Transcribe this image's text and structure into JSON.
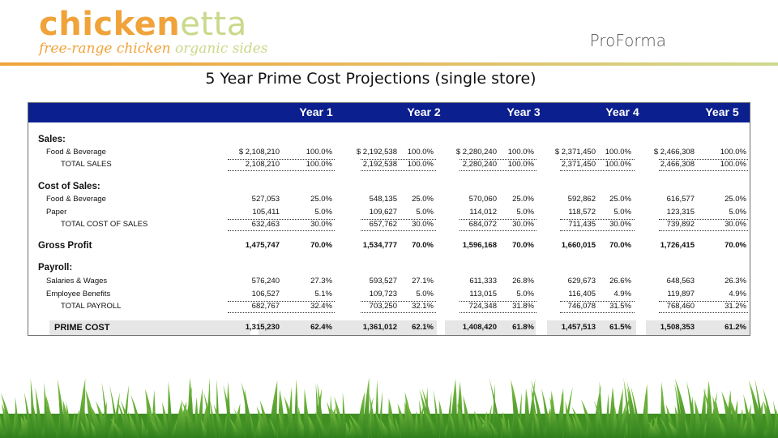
{
  "logo": {
    "brand_a": "chicken",
    "brand_b": "etta",
    "tagline_a": "free-range chicken",
    "tagline_b": "organic sides"
  },
  "header": {
    "label": "ProForma"
  },
  "page_title": "5 Year Prime Cost Projections (single store)",
  "years": [
    "Year 1",
    "Year 2",
    "Year 3",
    "Year 4",
    "Year 5"
  ],
  "sections": {
    "sales": "Sales:",
    "cost_of_sales": "Cost of Sales:",
    "gross_profit": "Gross Profit",
    "payroll": "Payroll:",
    "prime_cost": "PRIME COST"
  },
  "rows": {
    "sales_fb": {
      "label": "Food & Beverage",
      "values": [
        [
          "$ 2,108,210",
          "100.0%"
        ],
        [
          "$ 2,192,538",
          "100.0%"
        ],
        [
          "$ 2,280,240",
          "100.0%"
        ],
        [
          "$ 2,371,450",
          "100.0%"
        ],
        [
          "$ 2,466,308",
          "100.0%"
        ]
      ]
    },
    "total_sales": {
      "label": "TOTAL SALES",
      "values": [
        [
          "2,108,210",
          "100.0%"
        ],
        [
          "2,192,538",
          "100.0%"
        ],
        [
          "2,280,240",
          "100.0%"
        ],
        [
          "2,371,450",
          "100.0%"
        ],
        [
          "2,466,308",
          "100.0%"
        ]
      ]
    },
    "cos_fb": {
      "label": "Food & Beverage",
      "values": [
        [
          "527,053",
          "25.0%"
        ],
        [
          "548,135",
          "25.0%"
        ],
        [
          "570,060",
          "25.0%"
        ],
        [
          "592,862",
          "25.0%"
        ],
        [
          "616,577",
          "25.0%"
        ]
      ]
    },
    "paper": {
      "label": "Paper",
      "values": [
        [
          "105,411",
          "5.0%"
        ],
        [
          "109,627",
          "5.0%"
        ],
        [
          "114,012",
          "5.0%"
        ],
        [
          "118,572",
          "5.0%"
        ],
        [
          "123,315",
          "5.0%"
        ]
      ]
    },
    "total_cos": {
      "label": "TOTAL COST OF SALES",
      "values": [
        [
          "632,463",
          "30.0%"
        ],
        [
          "657,762",
          "30.0%"
        ],
        [
          "684,072",
          "30.0%"
        ],
        [
          "711,435",
          "30.0%"
        ],
        [
          "739,892",
          "30.0%"
        ]
      ]
    },
    "gross_profit": {
      "values": [
        [
          "1,475,747",
          "70.0%"
        ],
        [
          "1,534,777",
          "70.0%"
        ],
        [
          "1,596,168",
          "70.0%"
        ],
        [
          "1,660,015",
          "70.0%"
        ],
        [
          "1,726,415",
          "70.0%"
        ]
      ]
    },
    "salaries": {
      "label": "Salaries & Wages",
      "values": [
        [
          "576,240",
          "27.3%"
        ],
        [
          "593,527",
          "27.1%"
        ],
        [
          "611,333",
          "26.8%"
        ],
        [
          "629,673",
          "26.6%"
        ],
        [
          "648,563",
          "26.3%"
        ]
      ]
    },
    "benefits": {
      "label": "Employee Benefits",
      "values": [
        [
          "106,527",
          "5.1%"
        ],
        [
          "109,723",
          "5.0%"
        ],
        [
          "113,015",
          "5.0%"
        ],
        [
          "116,405",
          "4.9%"
        ],
        [
          "119,897",
          "4.9%"
        ]
      ]
    },
    "total_payroll": {
      "label": "TOTAL PAYROLL",
      "values": [
        [
          "682,767",
          "32.4%"
        ],
        [
          "703,250",
          "32.1%"
        ],
        [
          "724,348",
          "31.8%"
        ],
        [
          "746,078",
          "31.5%"
        ],
        [
          "768,460",
          "31.2%"
        ]
      ]
    },
    "prime_cost": {
      "values": [
        [
          "1,315,230",
          "62.4%"
        ],
        [
          "1,361,012",
          "62.1%"
        ],
        [
          "1,408,420",
          "61.8%"
        ],
        [
          "1,457,513",
          "61.5%"
        ],
        [
          "1,508,353",
          "61.2%"
        ]
      ]
    }
  }
}
